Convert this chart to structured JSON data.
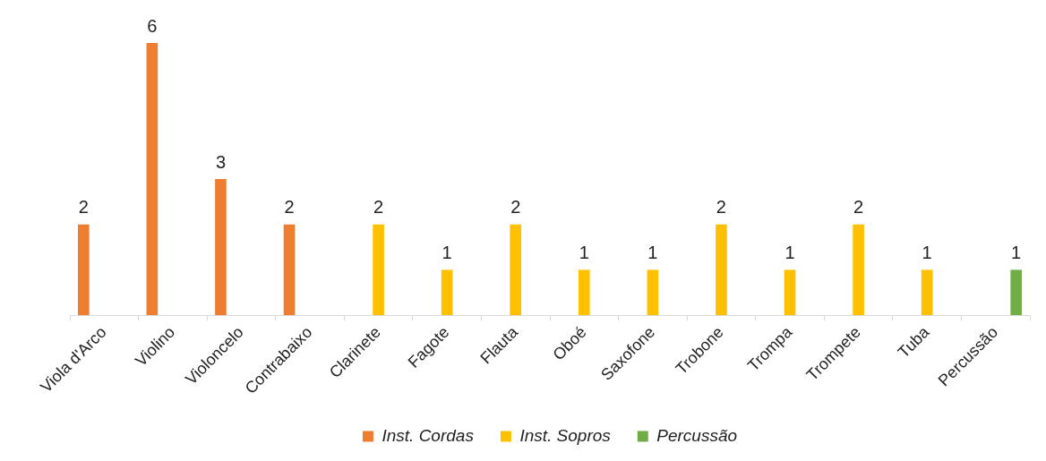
{
  "chart_data": {
    "type": "bar",
    "categories": [
      "Viola d'Arco",
      "Violino",
      "Violoncelo",
      "Contrabaixo",
      "Clarinete",
      "Fagote",
      "Flauta",
      "Oboé",
      "Saxofone",
      "Trobone",
      "Trompa",
      "Trompete",
      "Tuba",
      "Percussão"
    ],
    "series": [
      {
        "name": "Inst. Cordas",
        "color": "#ed7d31",
        "values": [
          2,
          6,
          3,
          2,
          null,
          null,
          null,
          null,
          null,
          null,
          null,
          null,
          null,
          null
        ]
      },
      {
        "name": "Inst. Sopros",
        "color": "#ffc000",
        "values": [
          null,
          null,
          null,
          null,
          2,
          1,
          2,
          1,
          1,
          2,
          1,
          2,
          1,
          null
        ]
      },
      {
        "name": "Percussão",
        "color": "#70ad47",
        "values": [
          null,
          null,
          null,
          null,
          null,
          null,
          null,
          null,
          null,
          null,
          null,
          null,
          null,
          1
        ]
      }
    ],
    "data_labels": true,
    "legend": "bottom"
  }
}
